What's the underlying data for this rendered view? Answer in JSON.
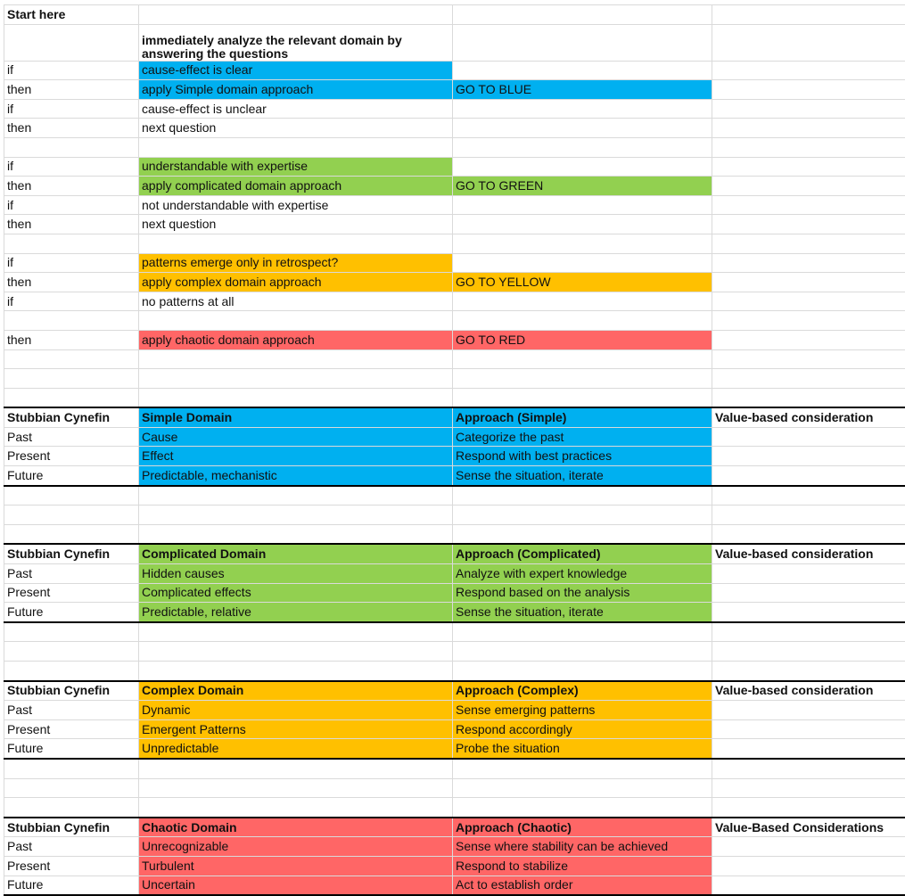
{
  "header": {
    "title": "Start here",
    "instruction": "immediately analyze the relevant domain by answering the questions"
  },
  "steps": [
    {
      "keyword": "if",
      "text": "cause-effect is clear"
    },
    {
      "keyword": "then",
      "text": "apply Simple domain approach",
      "action": "GO TO BLUE"
    },
    {
      "keyword": "if",
      "text": "cause-effect is unclear"
    },
    {
      "keyword": "then",
      "text": "next question"
    },
    {
      "keyword": "if",
      "text": "understandable with expertise"
    },
    {
      "keyword": "then",
      "text": "apply complicated domain approach",
      "action": "GO TO GREEN"
    },
    {
      "keyword": "if",
      "text": "not understandable with expertise"
    },
    {
      "keyword": "then",
      "text": "next question"
    },
    {
      "keyword": "if",
      "text": "patterns emerge only in retrospect?"
    },
    {
      "keyword": "then",
      "text": "apply complex domain approach",
      "action": "GO TO YELLOW"
    },
    {
      "keyword": "if",
      "text": "no patterns at all"
    },
    {
      "keyword": "then",
      "text": "apply chaotic domain approach",
      "action": "GO TO RED"
    }
  ],
  "tables": [
    {
      "label": "Stubbian Cynefin",
      "domain": "Simple Domain",
      "approach": "Approach (Simple)",
      "consideration": "Value-based consideration",
      "rows": [
        [
          "Past",
          "Cause",
          "Categorize the past"
        ],
        [
          "Present",
          "Effect",
          "Respond with best practices"
        ],
        [
          "Future",
          "Predictable, mechanistic",
          "Sense the situation, iterate"
        ]
      ]
    },
    {
      "label": "Stubbian Cynefin",
      "domain": "Complicated Domain",
      "approach": "Approach (Complicated)",
      "consideration": "Value-based consideration",
      "rows": [
        [
          "Past",
          "Hidden causes",
          "Analyze with expert knowledge"
        ],
        [
          "Present",
          "Complicated effects",
          "Respond based on the analysis"
        ],
        [
          "Future",
          "Predictable, relative",
          "Sense the situation, iterate"
        ]
      ]
    },
    {
      "label": "Stubbian Cynefin",
      "domain": "Complex Domain",
      "approach": "Approach (Complex)",
      "consideration": "Value-based consideration",
      "rows": [
        [
          "Past",
          "Dynamic",
          "Sense emerging patterns"
        ],
        [
          "Present",
          "Emergent Patterns",
          "Respond accordingly"
        ],
        [
          "Future",
          "Unpredictable",
          "Probe the situation"
        ]
      ]
    },
    {
      "label": "Stubbian Cynefin",
      "domain": "Chaotic Domain",
      "approach": "Approach (Chaotic)",
      "consideration": "Value-Based Considerations",
      "rows": [
        [
          "Past",
          "Unrecognizable",
          "Sense where stability can be achieved"
        ],
        [
          "Present",
          "Turbulent",
          "Respond to stabilize"
        ],
        [
          "Future",
          "Uncertain",
          "Act to establish order"
        ]
      ]
    }
  ]
}
